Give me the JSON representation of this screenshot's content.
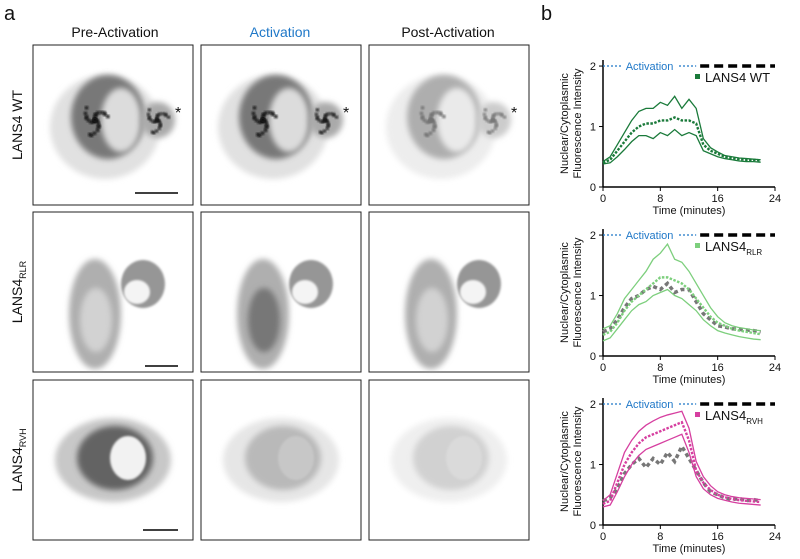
{
  "panel_labels": [
    "a",
    "b"
  ],
  "columns": [
    "Pre-Activation",
    "Activation",
    "Post-Activation"
  ],
  "rows": [
    {
      "label": "LANS4 WT"
    },
    {
      "label": "LANS4",
      "sub": "RLR"
    },
    {
      "label": "LANS4",
      "sub": "RVH"
    }
  ],
  "asterisks": [
    "*",
    "*",
    "*"
  ],
  "chart_data": [
    {
      "type": "line",
      "ylabel": [
        "Nuclear/Cytoplasmic",
        "Fluorescence Intensity"
      ],
      "xlabel": "Time (minutes)",
      "x": [
        0,
        1,
        2,
        3,
        4,
        5,
        6,
        7,
        8,
        9,
        10,
        11,
        12,
        13,
        14,
        15,
        16,
        17,
        18,
        19,
        20,
        21,
        22
      ],
      "xlim": [
        0,
        24
      ],
      "xticks": [
        0,
        8,
        16,
        24
      ],
      "ylim": [
        0,
        2.1
      ],
      "yticks": [
        0,
        1,
        2
      ],
      "activation": {
        "label": "Activation",
        "start": 0,
        "end": 13
      },
      "legend": "upper right",
      "series": [
        {
          "name": "LANS4 WT",
          "color": "#1a7a3a",
          "style": "mean",
          "values": [
            0.4,
            0.45,
            0.6,
            0.75,
            0.9,
            1.0,
            1.05,
            1.05,
            1.1,
            1.1,
            1.15,
            1.1,
            1.1,
            1.05,
            0.7,
            0.6,
            0.55,
            0.5,
            0.48,
            0.46,
            0.45,
            0.45,
            0.44
          ]
        },
        {
          "color": "#1a7a3a",
          "style": "bound",
          "values": [
            0.42,
            0.5,
            0.7,
            0.9,
            1.1,
            1.25,
            1.3,
            1.3,
            1.4,
            1.35,
            1.5,
            1.3,
            1.45,
            1.3,
            0.8,
            0.65,
            0.58,
            0.52,
            0.5,
            0.48,
            0.47,
            0.46,
            0.45
          ]
        },
        {
          "color": "#1a7a3a",
          "style": "bound",
          "values": [
            0.38,
            0.4,
            0.5,
            0.62,
            0.75,
            0.85,
            0.85,
            0.8,
            0.9,
            0.85,
            0.95,
            0.85,
            0.9,
            0.85,
            0.6,
            0.55,
            0.5,
            0.47,
            0.45,
            0.43,
            0.42,
            0.42,
            0.41
          ]
        }
      ]
    },
    {
      "type": "line",
      "ylabel": [
        "Nuclear/Cytoplasmic",
        "Fluorescence Intensity"
      ],
      "xlabel": "Time (minutes)",
      "x": [
        0,
        1,
        2,
        3,
        4,
        5,
        6,
        7,
        8,
        9,
        10,
        11,
        12,
        13,
        14,
        15,
        16,
        17,
        18,
        19,
        20,
        21,
        22
      ],
      "xlim": [
        0,
        24
      ],
      "xticks": [
        0,
        8,
        16,
        24
      ],
      "ylim": [
        0,
        2.1
      ],
      "yticks": [
        0,
        1,
        2
      ],
      "activation": {
        "label": "Activation",
        "start": 0,
        "end": 13
      },
      "legend": "upper right",
      "series": [
        {
          "color": "#777777",
          "style": "reference",
          "values": [
            0.4,
            0.45,
            0.6,
            0.8,
            0.95,
            1.0,
            1.1,
            1.15,
            1.1,
            1.2,
            1.05,
            1.1,
            1.1,
            0.9,
            0.7,
            0.6,
            0.5,
            0.48,
            0.45,
            0.44,
            0.43,
            0.42,
            0.4
          ]
        },
        {
          "name": "LANS4",
          "sub": "RLR",
          "color": "#7dcf7d",
          "style": "mean",
          "values": [
            0.35,
            0.4,
            0.55,
            0.75,
            0.9,
            1.0,
            1.1,
            1.2,
            1.3,
            1.3,
            1.25,
            1.2,
            1.1,
            0.95,
            0.8,
            0.65,
            0.55,
            0.5,
            0.45,
            0.42,
            0.4,
            0.38,
            0.36
          ]
        },
        {
          "color": "#7dcf7d",
          "style": "bound",
          "values": [
            0.45,
            0.5,
            0.7,
            0.95,
            1.1,
            1.25,
            1.4,
            1.6,
            1.7,
            1.85,
            1.6,
            1.55,
            1.4,
            1.2,
            1.0,
            0.8,
            0.65,
            0.55,
            0.5,
            0.47,
            0.45,
            0.43,
            0.42
          ]
        },
        {
          "color": "#7dcf7d",
          "style": "bound",
          "values": [
            0.25,
            0.3,
            0.45,
            0.6,
            0.75,
            0.85,
            0.9,
            1.0,
            1.05,
            1.1,
            1.0,
            0.95,
            0.85,
            0.75,
            0.6,
            0.5,
            0.42,
            0.38,
            0.35,
            0.32,
            0.3,
            0.28,
            0.27
          ]
        }
      ]
    },
    {
      "type": "line",
      "ylabel": [
        "Nuclear/Cytoplasmic",
        "Fluorescence Intensity"
      ],
      "xlabel": "Time (minutes)",
      "x": [
        0,
        1,
        2,
        3,
        4,
        5,
        6,
        7,
        8,
        9,
        10,
        11,
        12,
        13,
        14,
        15,
        16,
        17,
        18,
        19,
        20,
        21,
        22
      ],
      "xlim": [
        0,
        24
      ],
      "xticks": [
        0,
        8,
        16,
        24
      ],
      "ylim": [
        0,
        2.1
      ],
      "yticks": [
        0,
        1,
        2
      ],
      "activation": {
        "label": "Activation",
        "start": 0,
        "end": 13
      },
      "legend": "upper right",
      "series": [
        {
          "color": "#777777",
          "style": "reference",
          "values": [
            0.4,
            0.45,
            0.6,
            0.85,
            1.0,
            1.1,
            0.95,
            1.1,
            1.0,
            1.2,
            1.05,
            1.3,
            1.1,
            0.9,
            0.7,
            0.55,
            0.5,
            0.45,
            0.42,
            0.44,
            0.4,
            0.42,
            0.4
          ]
        },
        {
          "name": "LANS4",
          "sub": "RVH",
          "color": "#d63fa0",
          "style": "mean",
          "values": [
            0.35,
            0.4,
            0.7,
            1.0,
            1.2,
            1.35,
            1.45,
            1.5,
            1.55,
            1.6,
            1.65,
            1.7,
            1.4,
            0.9,
            0.7,
            0.58,
            0.5,
            0.46,
            0.43,
            0.41,
            0.4,
            0.39,
            0.38
          ]
        },
        {
          "color": "#d63fa0",
          "style": "bound",
          "values": [
            0.4,
            0.5,
            0.85,
            1.2,
            1.4,
            1.55,
            1.65,
            1.72,
            1.78,
            1.82,
            1.85,
            1.88,
            1.6,
            1.05,
            0.8,
            0.65,
            0.55,
            0.5,
            0.47,
            0.45,
            0.44,
            0.43,
            0.42
          ]
        },
        {
          "color": "#d63fa0",
          "style": "bound",
          "values": [
            0.3,
            0.33,
            0.55,
            0.8,
            1.0,
            1.15,
            1.25,
            1.3,
            1.35,
            1.4,
            1.45,
            1.5,
            1.2,
            0.8,
            0.6,
            0.5,
            0.44,
            0.41,
            0.38,
            0.36,
            0.35,
            0.34,
            0.33
          ]
        }
      ]
    }
  ]
}
